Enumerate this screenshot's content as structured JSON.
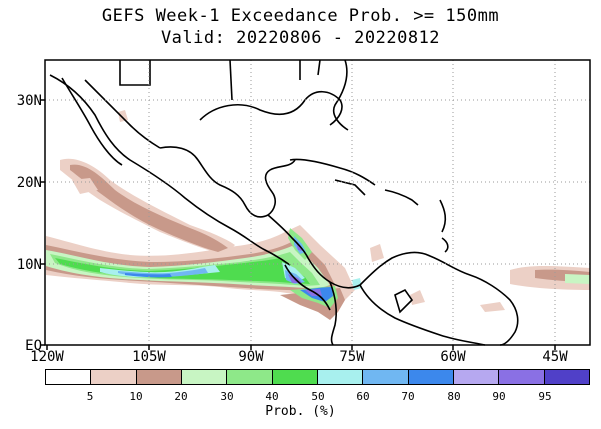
{
  "title": {
    "line1": "GEFS Week-1 Exceedance Prob. >= 150mm",
    "line2": "Valid: 20220806 - 20220812"
  },
  "axes": {
    "y_labels": [
      "30N",
      "20N",
      "10N",
      "EQ"
    ],
    "x_labels": [
      "120W",
      "105W",
      "90W",
      "75W",
      "60W",
      "45W"
    ]
  },
  "colorbar": {
    "colors": [
      "#ffffff",
      "#ecd0c6",
      "#c8998a",
      "#c8f5c3",
      "#8ee889",
      "#4fdc4f",
      "#a8f0ee",
      "#70b7f2",
      "#3c88ec",
      "#b6a8f0",
      "#8a70e4",
      "#5040c8"
    ],
    "tick_labels": [
      "5",
      "10",
      "20",
      "30",
      "40",
      "50",
      "60",
      "70",
      "80",
      "90",
      "95"
    ],
    "unit": "Prob. (%)"
  }
}
